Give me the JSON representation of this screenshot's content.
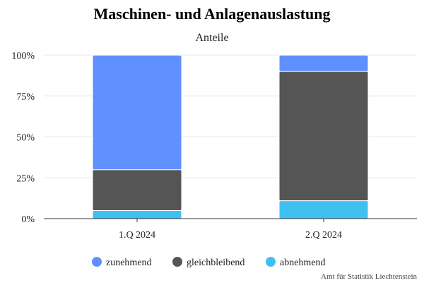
{
  "chart_data": {
    "type": "bar",
    "stacked": true,
    "percent": true,
    "title": "Maschinen- und Anlagenauslastung",
    "subtitle": "Anteile",
    "categories": [
      "1.Q 2024",
      "2.Q 2024"
    ],
    "series": [
      {
        "name": "zunehmend",
        "color": "#6090ff",
        "values": [
          70,
          10
        ]
      },
      {
        "name": "gleichbleibend",
        "color": "#555555",
        "values": [
          25,
          79
        ]
      },
      {
        "name": "abnehmend",
        "color": "#3fc0f0",
        "values": [
          5,
          11
        ]
      }
    ],
    "yticks": [
      "0%",
      "25%",
      "50%",
      "75%",
      "100%"
    ],
    "ylim": [
      0,
      100
    ],
    "grid": true,
    "legend": "bottom",
    "credits": "Amt für Statistik Liechtenstein"
  }
}
